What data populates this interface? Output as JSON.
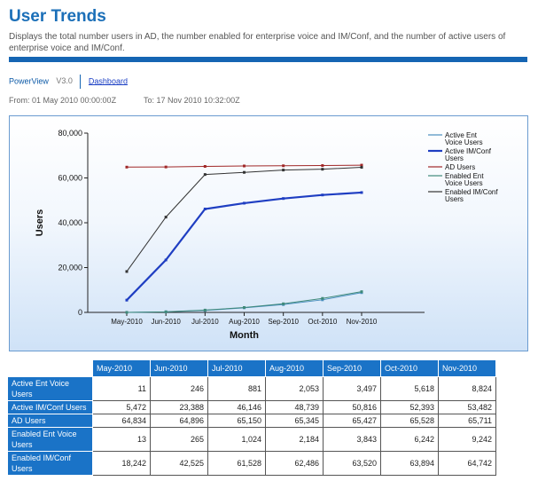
{
  "header": {
    "title": "User Trends",
    "description": "Displays the total number users in AD, the number enabled for enterprise voice and IM/Conf, and the number of active users of enterprise voice and IM/Conf."
  },
  "nav": {
    "product": "PowerView",
    "version": "V3.0",
    "dashboard_link": "Dashboard"
  },
  "range": {
    "from": "From: 01 May 2010 00:00:00Z",
    "to": "To: 17 Nov 2010 10:32:00Z"
  },
  "colors": {
    "active_ent_voice": "#4a8fbf",
    "active_im_conf": "#1f3ec2",
    "ad_users": "#a02828",
    "enabled_ent_voice": "#3f8a7a",
    "enabled_im_conf": "#333333"
  },
  "chart_data": {
    "type": "line",
    "xlabel": "Month",
    "ylabel": "Users",
    "ylim": [
      0,
      80000
    ],
    "yticks": [
      "0",
      "20,000",
      "40,000",
      "60,000",
      "80,000"
    ],
    "categories": [
      "May-2010",
      "Jun-2010",
      "Jul-2010",
      "Aug-2010",
      "Sep-2010",
      "Oct-2010",
      "Nov-2010"
    ],
    "legend": [
      "Active Ent Voice Users",
      "Active IM/Conf Users",
      "AD Users",
      "Enabled Ent Voice Users",
      "Enabled IM/Conf Users"
    ],
    "series": [
      {
        "key": "active_ent_voice",
        "name": "Active Ent Voice Users",
        "values": [
          11,
          246,
          881,
          2053,
          3497,
          5618,
          8824
        ]
      },
      {
        "key": "active_im_conf",
        "name": "Active IM/Conf Users",
        "values": [
          5472,
          23388,
          46146,
          48739,
          50816,
          52393,
          53482
        ]
      },
      {
        "key": "ad_users",
        "name": "AD Users",
        "values": [
          64834,
          64896,
          65150,
          65345,
          65427,
          65528,
          65711
        ]
      },
      {
        "key": "enabled_ent_voice",
        "name": "Enabled Ent Voice Users",
        "values": [
          13,
          265,
          1024,
          2184,
          3843,
          6242,
          9242
        ]
      },
      {
        "key": "enabled_im_conf",
        "name": "Enabled IM/Conf Users",
        "values": [
          18242,
          42525,
          61528,
          62486,
          63520,
          63894,
          64742
        ]
      }
    ]
  },
  "table": {
    "columns": [
      "May-2010",
      "Jun-2010",
      "Jul-2010",
      "Aug-2010",
      "Sep-2010",
      "Oct-2010",
      "Nov-2010"
    ],
    "rows": [
      {
        "label": "Active Ent Voice Users",
        "values": [
          "11",
          "246",
          "881",
          "2,053",
          "3,497",
          "5,618",
          "8,824"
        ]
      },
      {
        "label": "Active IM/Conf Users",
        "values": [
          "5,472",
          "23,388",
          "46,146",
          "48,739",
          "50,816",
          "52,393",
          "53,482"
        ]
      },
      {
        "label": "AD Users",
        "values": [
          "64,834",
          "64,896",
          "65,150",
          "65,345",
          "65,427",
          "65,528",
          "65,711"
        ]
      },
      {
        "label": "Enabled Ent Voice Users",
        "values": [
          "13",
          "265",
          "1,024",
          "2,184",
          "3,843",
          "6,242",
          "9,242"
        ]
      },
      {
        "label": "Enabled IM/Conf Users",
        "values": [
          "18,242",
          "42,525",
          "61,528",
          "62,486",
          "63,520",
          "63,894",
          "64,742"
        ]
      }
    ]
  }
}
